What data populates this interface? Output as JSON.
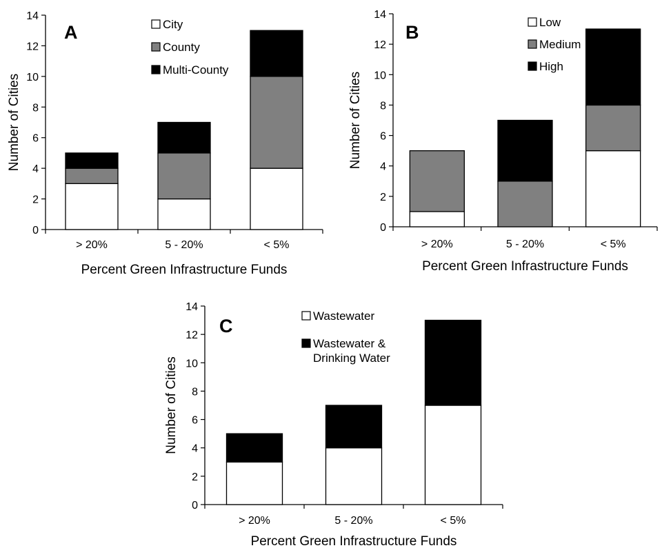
{
  "chart_data": [
    {
      "type": "bar",
      "stacked": true,
      "panel_label": "A",
      "categories": [
        "> 20%",
        "5 - 20%",
        "< 5%"
      ],
      "series": [
        {
          "name": "City",
          "color": "#ffffff",
          "values": [
            3,
            2,
            4
          ]
        },
        {
          "name": "County",
          "color": "#808080",
          "values": [
            1,
            3,
            6
          ]
        },
        {
          "name": "Multi-County",
          "color": "#000000",
          "values": [
            1,
            2,
            3
          ]
        }
      ],
      "xlabel": "Percent Green Infrastructure Funds",
      "ylabel": "Number of Cities",
      "ylim": [
        0,
        14
      ],
      "yticks": [
        0,
        2,
        4,
        6,
        8,
        10,
        12,
        14
      ],
      "grid": false,
      "legend_position": "top-center"
    },
    {
      "type": "bar",
      "stacked": true,
      "panel_label": "B",
      "categories": [
        "> 20%",
        "5 - 20%",
        "< 5%"
      ],
      "series": [
        {
          "name": "Low",
          "color": "#ffffff",
          "values": [
            1,
            0,
            5
          ]
        },
        {
          "name": "Medium",
          "color": "#808080",
          "values": [
            4,
            3,
            3
          ]
        },
        {
          "name": "High",
          "color": "#000000",
          "values": [
            0,
            4,
            5
          ]
        }
      ],
      "xlabel": "Percent Green Infrastructure Funds",
      "ylabel": "Number of Cities",
      "ylim": [
        0,
        14
      ],
      "yticks": [
        0,
        2,
        4,
        6,
        8,
        10,
        12,
        14
      ],
      "grid": false,
      "legend_position": "top-right"
    },
    {
      "type": "bar",
      "stacked": true,
      "panel_label": "C",
      "categories": [
        "> 20%",
        "5 - 20%",
        "< 5%"
      ],
      "series": [
        {
          "name": "Wastewater",
          "color": "#ffffff",
          "values": [
            3,
            4,
            7
          ]
        },
        {
          "name": [
            "Wastewater &",
            "Drinking Water"
          ],
          "color": "#000000",
          "values": [
            2,
            3,
            6
          ]
        }
      ],
      "xlabel": "Percent Green Infrastructure Funds",
      "ylabel": "Number of Cities",
      "ylim": [
        0,
        14
      ],
      "yticks": [
        0,
        2,
        4,
        6,
        8,
        10,
        12,
        14
      ],
      "grid": false,
      "legend_position": "top-center"
    }
  ]
}
